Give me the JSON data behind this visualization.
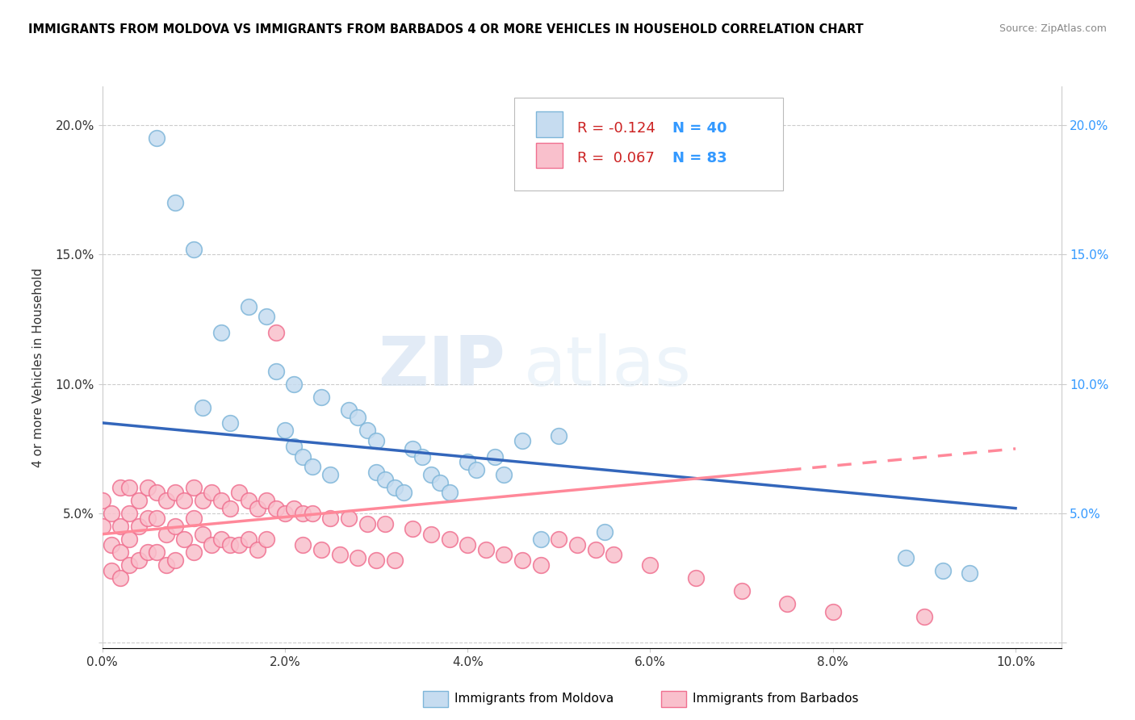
{
  "title": "IMMIGRANTS FROM MOLDOVA VS IMMIGRANTS FROM BARBADOS 4 OR MORE VEHICLES IN HOUSEHOLD CORRELATION CHART",
  "source": "Source: ZipAtlas.com",
  "ylabel": "4 or more Vehicles in Household",
  "xlim": [
    0.0,
    0.105
  ],
  "ylim": [
    -0.002,
    0.215
  ],
  "xtick_values": [
    0.0,
    0.02,
    0.04,
    0.06,
    0.08,
    0.1
  ],
  "xtick_labels": [
    "0.0%",
    "2.0%",
    "4.0%",
    "6.0%",
    "8.0%",
    "10.0%"
  ],
  "ytick_values": [
    0.0,
    0.05,
    0.1,
    0.15,
    0.2
  ],
  "ytick_labels_left": [
    "",
    "5.0%",
    "10.0%",
    "15.0%",
    "20.0%"
  ],
  "ytick_labels_right": [
    "",
    "5.0%",
    "10.0%",
    "15.0%",
    "20.0%"
  ],
  "moldova_face": "#c6dcf0",
  "moldova_edge": "#7eb6d9",
  "barbados_face": "#f9c0cc",
  "barbados_edge": "#f07090",
  "trend_moldova": "#3366bb",
  "trend_barbados": "#ff8899",
  "R_moldova": -0.124,
  "N_moldova": 40,
  "R_barbados": 0.067,
  "N_barbados": 83,
  "watermark_zip": "ZIP",
  "watermark_atlas": "atlas",
  "moldova_x": [
    0.006,
    0.008,
    0.01,
    0.011,
    0.013,
    0.014,
    0.016,
    0.018,
    0.019,
    0.02,
    0.021,
    0.021,
    0.022,
    0.023,
    0.024,
    0.025,
    0.027,
    0.028,
    0.029,
    0.03,
    0.03,
    0.031,
    0.032,
    0.033,
    0.034,
    0.035,
    0.036,
    0.037,
    0.038,
    0.04,
    0.041,
    0.043,
    0.044,
    0.046,
    0.048,
    0.05,
    0.055,
    0.088,
    0.092,
    0.095
  ],
  "moldova_y": [
    0.195,
    0.17,
    0.152,
    0.091,
    0.12,
    0.085,
    0.13,
    0.126,
    0.105,
    0.082,
    0.1,
    0.076,
    0.072,
    0.068,
    0.095,
    0.065,
    0.09,
    0.087,
    0.082,
    0.078,
    0.066,
    0.063,
    0.06,
    0.058,
    0.075,
    0.072,
    0.065,
    0.062,
    0.058,
    0.07,
    0.067,
    0.072,
    0.065,
    0.078,
    0.04,
    0.08,
    0.043,
    0.033,
    0.028,
    0.027
  ],
  "barbados_x": [
    0.0,
    0.0,
    0.001,
    0.001,
    0.001,
    0.002,
    0.002,
    0.002,
    0.002,
    0.003,
    0.003,
    0.003,
    0.003,
    0.004,
    0.004,
    0.004,
    0.005,
    0.005,
    0.005,
    0.006,
    0.006,
    0.006,
    0.007,
    0.007,
    0.007,
    0.008,
    0.008,
    0.008,
    0.009,
    0.009,
    0.01,
    0.01,
    0.01,
    0.011,
    0.011,
    0.012,
    0.012,
    0.013,
    0.013,
    0.014,
    0.014,
    0.015,
    0.015,
    0.016,
    0.016,
    0.017,
    0.017,
    0.018,
    0.018,
    0.019,
    0.019,
    0.02,
    0.021,
    0.022,
    0.022,
    0.023,
    0.024,
    0.025,
    0.026,
    0.027,
    0.028,
    0.029,
    0.03,
    0.031,
    0.032,
    0.034,
    0.036,
    0.038,
    0.04,
    0.042,
    0.044,
    0.046,
    0.048,
    0.05,
    0.052,
    0.054,
    0.056,
    0.06,
    0.065,
    0.07,
    0.075,
    0.08,
    0.09
  ],
  "barbados_y": [
    0.055,
    0.045,
    0.05,
    0.038,
    0.028,
    0.06,
    0.045,
    0.035,
    0.025,
    0.06,
    0.05,
    0.04,
    0.03,
    0.055,
    0.045,
    0.032,
    0.06,
    0.048,
    0.035,
    0.058,
    0.048,
    0.035,
    0.055,
    0.042,
    0.03,
    0.058,
    0.045,
    0.032,
    0.055,
    0.04,
    0.06,
    0.048,
    0.035,
    0.055,
    0.042,
    0.058,
    0.038,
    0.055,
    0.04,
    0.052,
    0.038,
    0.058,
    0.038,
    0.055,
    0.04,
    0.052,
    0.036,
    0.055,
    0.04,
    0.12,
    0.052,
    0.05,
    0.052,
    0.05,
    0.038,
    0.05,
    0.036,
    0.048,
    0.034,
    0.048,
    0.033,
    0.046,
    0.032,
    0.046,
    0.032,
    0.044,
    0.042,
    0.04,
    0.038,
    0.036,
    0.034,
    0.032,
    0.03,
    0.04,
    0.038,
    0.036,
    0.034,
    0.03,
    0.025,
    0.02,
    0.015,
    0.012,
    0.01
  ]
}
